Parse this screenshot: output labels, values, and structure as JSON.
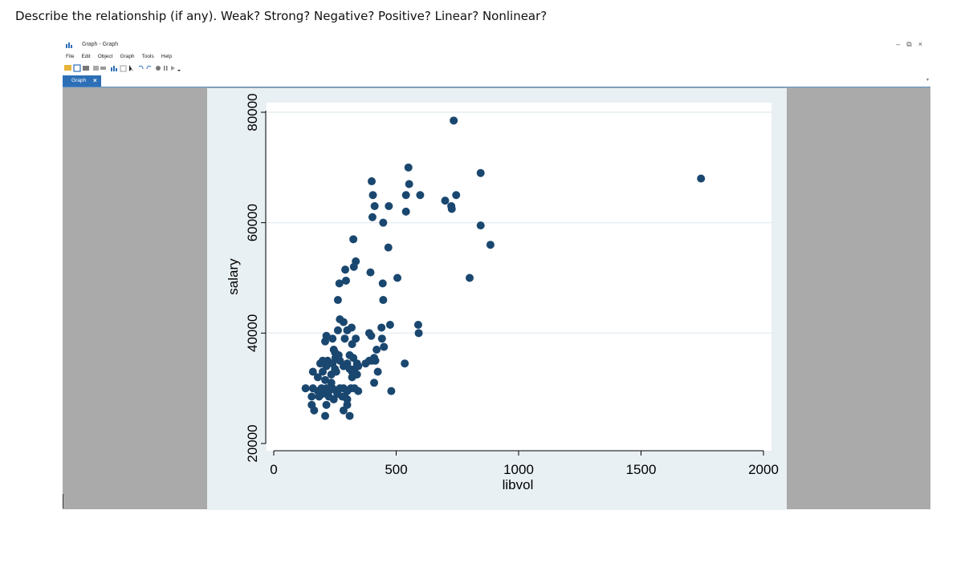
{
  "question": "Describe the relationship (if any). Weak? Strong? Negative? Positive? Linear? Nonlinear?",
  "window": {
    "title": "Graph - Graph",
    "menu": [
      "File",
      "Edit",
      "Object",
      "Graph",
      "Tools",
      "Help"
    ],
    "tab_label": "Graph",
    "tab_close": "×",
    "controls": [
      "–",
      "🗗",
      "×"
    ]
  },
  "colors": {
    "plot_outer_bg": "#e8f0f3",
    "plot_inner_bg": "#ffffff",
    "marker": "#1a476f",
    "gray_area": "#aaaaaa",
    "tab_active": "#2d6fb7"
  },
  "chart_data": {
    "type": "scatter",
    "title": "",
    "xlabel": "libvol",
    "ylabel": "salary",
    "xlim": [
      0,
      2000
    ],
    "ylim": [
      20000,
      80000
    ],
    "xticks": [
      0,
      500,
      1000,
      1500,
      2000
    ],
    "yticks": [
      20000,
      40000,
      60000,
      80000
    ],
    "grid": "horizontal",
    "points": [
      [
        735,
        78500
      ],
      [
        1745,
        68000
      ],
      [
        550,
        70000
      ],
      [
        845,
        69000
      ],
      [
        400,
        67500
      ],
      [
        553,
        67000
      ],
      [
        540,
        65000
      ],
      [
        598,
        65000
      ],
      [
        405,
        65000
      ],
      [
        745,
        65000
      ],
      [
        700,
        64000
      ],
      [
        725,
        63000
      ],
      [
        727,
        62500
      ],
      [
        412,
        63000
      ],
      [
        470,
        63000
      ],
      [
        540,
        62000
      ],
      [
        403,
        61000
      ],
      [
        447,
        60000
      ],
      [
        845,
        59500
      ],
      [
        885,
        56000
      ],
      [
        325,
        57000
      ],
      [
        468,
        55500
      ],
      [
        335,
        53000
      ],
      [
        327,
        52000
      ],
      [
        292,
        51500
      ],
      [
        395,
        51000
      ],
      [
        505,
        50000
      ],
      [
        800,
        50000
      ],
      [
        268,
        49000
      ],
      [
        295,
        49500
      ],
      [
        445,
        49000
      ],
      [
        262,
        46000
      ],
      [
        447,
        46000
      ],
      [
        270,
        42500
      ],
      [
        285,
        42000
      ],
      [
        318,
        41000
      ],
      [
        300,
        40500
      ],
      [
        262,
        40500
      ],
      [
        440,
        41000
      ],
      [
        475,
        41500
      ],
      [
        590,
        41500
      ],
      [
        592,
        40000
      ],
      [
        390,
        40000
      ],
      [
        398,
        39500
      ],
      [
        442,
        39000
      ],
      [
        215,
        39500
      ],
      [
        210,
        38500
      ],
      [
        240,
        39000
      ],
      [
        290,
        39000
      ],
      [
        335,
        39000
      ],
      [
        320,
        38000
      ],
      [
        245,
        37000
      ],
      [
        420,
        37000
      ],
      [
        450,
        37500
      ],
      [
        250,
        36500
      ],
      [
        252,
        35500
      ],
      [
        265,
        36000
      ],
      [
        310,
        36000
      ],
      [
        325,
        35500
      ],
      [
        410,
        35500
      ],
      [
        200,
        35000
      ],
      [
        220,
        35000
      ],
      [
        240,
        34500
      ],
      [
        270,
        35000
      ],
      [
        300,
        34500
      ],
      [
        340,
        34500
      ],
      [
        375,
        34500
      ],
      [
        390,
        35000
      ],
      [
        400,
        35000
      ],
      [
        415,
        35000
      ],
      [
        535,
        34500
      ],
      [
        190,
        34500
      ],
      [
        215,
        34000
      ],
      [
        250,
        33500
      ],
      [
        285,
        34000
      ],
      [
        310,
        33500
      ],
      [
        330,
        33500
      ],
      [
        345,
        34000
      ],
      [
        160,
        33000
      ],
      [
        200,
        33000
      ],
      [
        235,
        32500
      ],
      [
        255,
        33000
      ],
      [
        320,
        33000
      ],
      [
        340,
        32500
      ],
      [
        425,
        33000
      ],
      [
        180,
        32000
      ],
      [
        210,
        31500
      ],
      [
        235,
        31000
      ],
      [
        320,
        32000
      ],
      [
        410,
        31000
      ],
      [
        130,
        30000
      ],
      [
        160,
        30000
      ],
      [
        180,
        29500
      ],
      [
        195,
        30000
      ],
      [
        215,
        30000
      ],
      [
        225,
        29500
      ],
      [
        240,
        30000
      ],
      [
        255,
        29500
      ],
      [
        270,
        30000
      ],
      [
        285,
        30000
      ],
      [
        300,
        29500
      ],
      [
        315,
        30000
      ],
      [
        330,
        30000
      ],
      [
        345,
        29500
      ],
      [
        480,
        29500
      ],
      [
        155,
        28500
      ],
      [
        185,
        28500
      ],
      [
        200,
        29000
      ],
      [
        225,
        28500
      ],
      [
        260,
        29000
      ],
      [
        280,
        28500
      ],
      [
        300,
        28000
      ],
      [
        245,
        28000
      ],
      [
        290,
        28500
      ],
      [
        155,
        27000
      ],
      [
        215,
        27000
      ],
      [
        300,
        27000
      ],
      [
        165,
        26000
      ],
      [
        285,
        26000
      ],
      [
        210,
        25000
      ],
      [
        310,
        25000
      ]
    ]
  }
}
